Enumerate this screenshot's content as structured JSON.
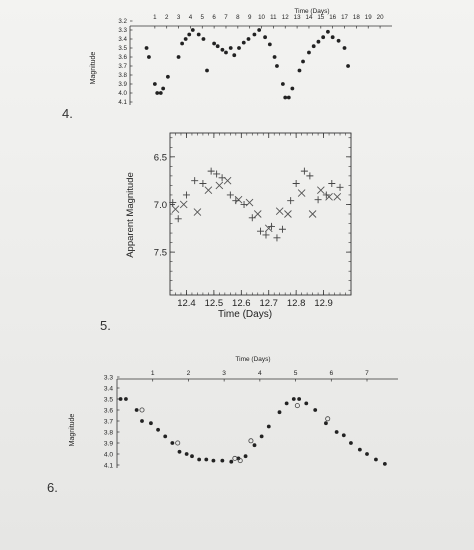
{
  "questions": [
    "4.",
    "5.",
    "6."
  ],
  "chart_data": [
    {
      "type": "scatter",
      "title": "",
      "xlabel": "Time (Days)",
      "ylabel": "Magnitude",
      "x_ticks": [
        1,
        2,
        3,
        4,
        5,
        6,
        7,
        8,
        9,
        10,
        11,
        12,
        13,
        14,
        15,
        16,
        17,
        18,
        19,
        20
      ],
      "y_ticks": [
        "3.2",
        "3.3",
        "3.4",
        "3.5",
        "3.6",
        "3.7",
        "3.8",
        "3.9",
        "4.0",
        "4.1"
      ],
      "xlim": [
        0,
        20.5
      ],
      "ylim": [
        3.2,
        4.1
      ],
      "y_inverted": true,
      "grid": false,
      "series": [
        {
          "marker": "dot",
          "points": [
            [
              0.3,
              3.5
            ],
            [
              0.5,
              3.6
            ],
            [
              1.0,
              3.9
            ],
            [
              1.2,
              4.0
            ],
            [
              1.5,
              4.0
            ],
            [
              1.7,
              3.95
            ],
            [
              2.1,
              3.82
            ],
            [
              3.0,
              3.6
            ],
            [
              3.3,
              3.45
            ],
            [
              3.6,
              3.4
            ],
            [
              3.9,
              3.35
            ],
            [
              4.2,
              3.3
            ],
            [
              4.7,
              3.35
            ],
            [
              5.1,
              3.4
            ],
            [
              5.4,
              3.75
            ],
            [
              6.0,
              3.45
            ],
            [
              6.3,
              3.48
            ],
            [
              6.7,
              3.52
            ],
            [
              7.0,
              3.55
            ],
            [
              7.4,
              3.5
            ],
            [
              7.7,
              3.58
            ],
            [
              8.1,
              3.5
            ],
            [
              8.5,
              3.44
            ],
            [
              8.9,
              3.4
            ],
            [
              9.4,
              3.35
            ],
            [
              9.8,
              3.3
            ],
            [
              10.3,
              3.38
            ],
            [
              10.7,
              3.46
            ],
            [
              11.1,
              3.6
            ],
            [
              11.3,
              3.7
            ],
            [
              11.8,
              3.9
            ],
            [
              12.0,
              4.05
            ],
            [
              12.3,
              4.05
            ],
            [
              12.6,
              3.95
            ],
            [
              13.2,
              3.75
            ],
            [
              13.5,
              3.65
            ],
            [
              14.0,
              3.55
            ],
            [
              14.4,
              3.48
            ],
            [
              14.8,
              3.43
            ],
            [
              15.2,
              3.38
            ],
            [
              15.6,
              3.32
            ],
            [
              16.0,
              3.38
            ],
            [
              16.5,
              3.42
            ],
            [
              17.0,
              3.5
            ],
            [
              17.3,
              3.7
            ]
          ]
        }
      ]
    },
    {
      "type": "scatter",
      "title": "",
      "xlabel": "Time (Days)",
      "ylabel": "Apparent Magnitude",
      "x_ticks": [
        "12.4",
        "12.5",
        "12.6",
        "12.7",
        "12.8",
        "12.9"
      ],
      "x_tick_values": [
        12.4,
        12.5,
        12.6,
        12.7,
        12.8,
        12.9
      ],
      "y_ticks": [
        "6.5",
        "7.0",
        "7.5"
      ],
      "y_tick_values": [
        6.5,
        7.0,
        7.5
      ],
      "xlim": [
        12.34,
        13.0
      ],
      "ylim": [
        6.25,
        7.95
      ],
      "y_inverted": true,
      "grid": false,
      "series": [
        {
          "marker": "plus",
          "points": [
            [
              12.35,
              6.98
            ],
            [
              12.37,
              7.15
            ],
            [
              12.4,
              6.9
            ],
            [
              12.43,
              6.75
            ],
            [
              12.46,
              6.78
            ],
            [
              12.49,
              6.65
            ],
            [
              12.51,
              6.68
            ],
            [
              12.53,
              6.72
            ],
            [
              12.56,
              6.9
            ],
            [
              12.58,
              6.96
            ],
            [
              12.61,
              7.0
            ],
            [
              12.64,
              7.14
            ],
            [
              12.67,
              7.28
            ],
            [
              12.69,
              7.32
            ],
            [
              12.71,
              7.23
            ],
            [
              12.73,
              7.35
            ],
            [
              12.75,
              7.26
            ],
            [
              12.78,
              6.96
            ],
            [
              12.8,
              6.78
            ],
            [
              12.83,
              6.65
            ],
            [
              12.85,
              6.7
            ],
            [
              12.88,
              6.95
            ],
            [
              12.91,
              6.9
            ],
            [
              12.93,
              6.78
            ],
            [
              12.96,
              6.82
            ]
          ]
        },
        {
          "marker": "cross",
          "points": [
            [
              12.36,
              7.05
            ],
            [
              12.39,
              7.0
            ],
            [
              12.44,
              7.08
            ],
            [
              12.48,
              6.85
            ],
            [
              12.52,
              6.8
            ],
            [
              12.55,
              6.75
            ],
            [
              12.59,
              6.95
            ],
            [
              12.63,
              6.98
            ],
            [
              12.66,
              7.1
            ],
            [
              12.7,
              7.25
            ],
            [
              12.74,
              7.07
            ],
            [
              12.77,
              7.1
            ],
            [
              12.82,
              6.88
            ],
            [
              12.86,
              7.1
            ],
            [
              12.89,
              6.85
            ],
            [
              12.92,
              6.92
            ],
            [
              12.95,
              6.92
            ]
          ]
        }
      ]
    },
    {
      "type": "scatter",
      "title": "",
      "xlabel": "Time (Days)",
      "ylabel": "Magnitude",
      "x_ticks": [
        1,
        2,
        3,
        4,
        5,
        6,
        7
      ],
      "y_ticks": [
        "3.3",
        "3.4",
        "3.5",
        "3.6",
        "3.7",
        "3.8",
        "3.9",
        "4.0",
        "4.1"
      ],
      "xlim": [
        0,
        7.7
      ],
      "ylim": [
        3.3,
        4.1
      ],
      "y_inverted": true,
      "grid": false,
      "series": [
        {
          "marker": "dot",
          "points": [
            [
              0.1,
              3.5
            ],
            [
              0.25,
              3.5
            ],
            [
              0.55,
              3.6
            ],
            [
              0.7,
              3.7
            ],
            [
              0.95,
              3.72
            ],
            [
              1.15,
              3.78
            ],
            [
              1.35,
              3.84
            ],
            [
              1.55,
              3.9
            ],
            [
              1.75,
              3.98
            ],
            [
              1.95,
              4.0
            ],
            [
              2.1,
              4.02
            ],
            [
              2.3,
              4.05
            ],
            [
              2.5,
              4.05
            ],
            [
              2.7,
              4.06
            ],
            [
              2.95,
              4.06
            ],
            [
              3.2,
              4.07
            ],
            [
              3.4,
              4.04
            ],
            [
              3.6,
              4.02
            ],
            [
              3.85,
              3.92
            ],
            [
              4.05,
              3.84
            ],
            [
              4.25,
              3.75
            ],
            [
              4.55,
              3.62
            ],
            [
              4.75,
              3.54
            ],
            [
              4.95,
              3.5
            ],
            [
              5.1,
              3.5
            ],
            [
              5.3,
              3.54
            ],
            [
              5.55,
              3.6
            ],
            [
              5.85,
              3.72
            ],
            [
              6.15,
              3.8
            ],
            [
              6.35,
              3.83
            ],
            [
              6.55,
              3.9
            ],
            [
              6.8,
              3.96
            ],
            [
              7.0,
              4.0
            ],
            [
              7.25,
              4.05
            ],
            [
              7.5,
              4.09
            ]
          ]
        },
        {
          "marker": "circle",
          "points": [
            [
              0.7,
              3.6
            ],
            [
              1.7,
              3.9
            ],
            [
              3.3,
              4.04
            ],
            [
              3.45,
              4.06
            ],
            [
              3.75,
              3.88
            ],
            [
              5.05,
              3.56
            ],
            [
              5.9,
              3.68
            ]
          ]
        }
      ]
    }
  ]
}
